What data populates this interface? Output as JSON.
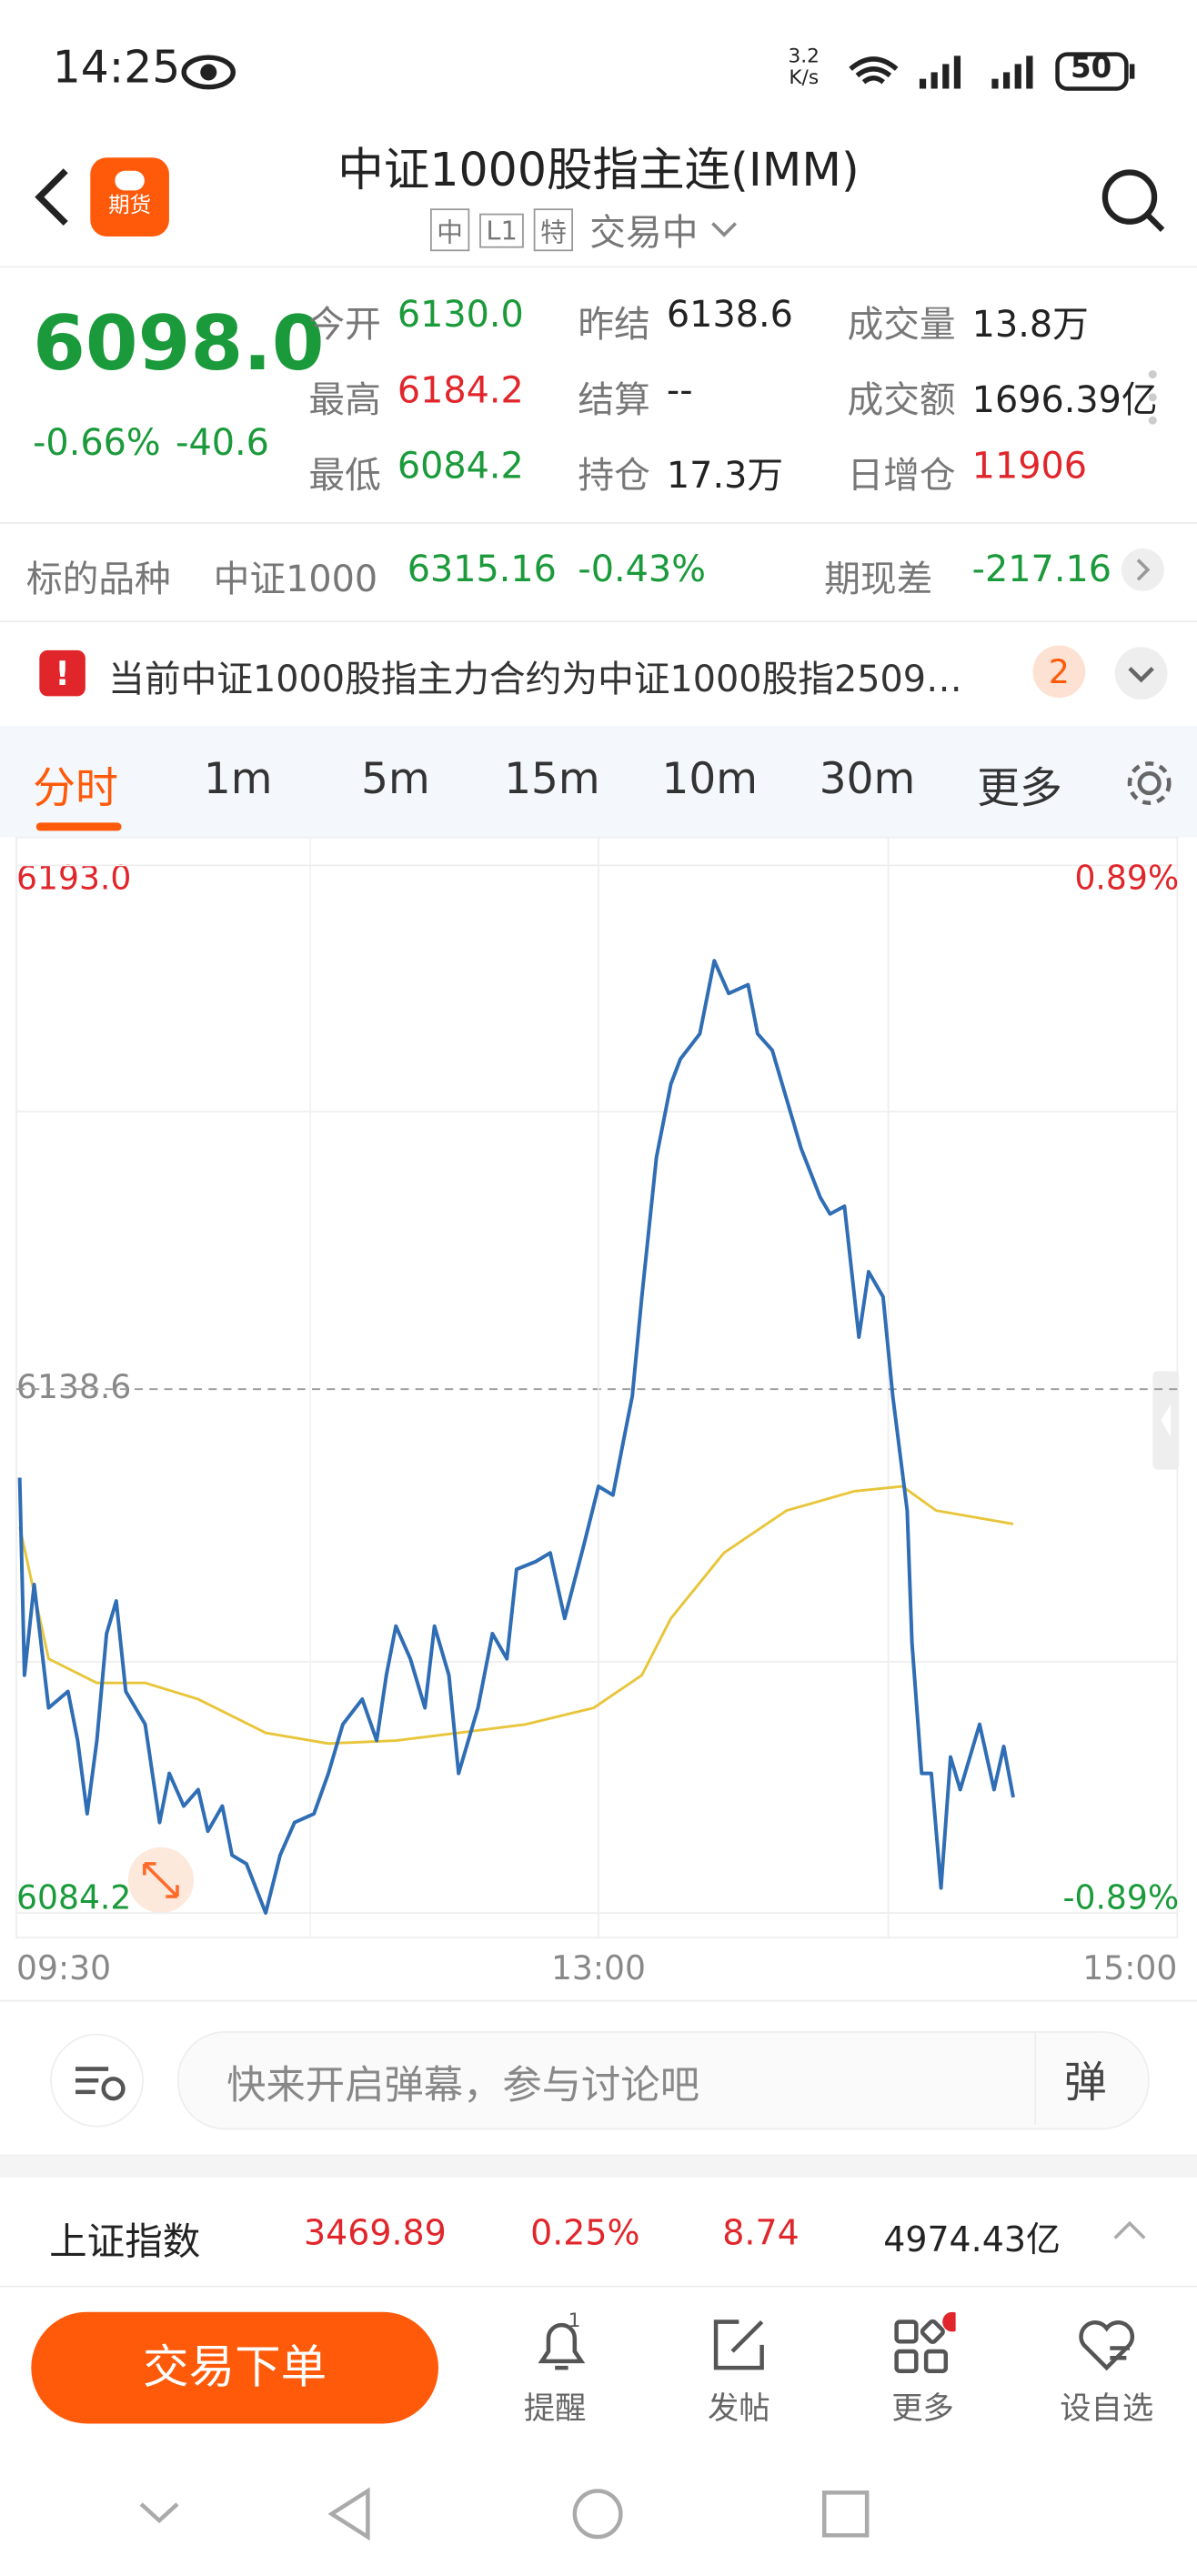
{
  "status_bar": {
    "time": "14:25",
    "speed": "3.2",
    "speed_unit": "K/s",
    "battery": "50"
  },
  "header": {
    "badge": "期货",
    "title": "中证1000股指主连(IMM)",
    "tags": [
      "中",
      "L1",
      "特"
    ],
    "status": "交易中"
  },
  "quote": {
    "price": "6098.0",
    "change_pct": "-0.66%",
    "change": "-40.6",
    "fields": [
      {
        "label": "今开",
        "value": "6130.0"
      },
      {
        "label": "昨结",
        "value": "6138.6"
      },
      {
        "label": "成交量",
        "value": "13.8万"
      },
      {
        "label": "最高",
        "value": "6184.2"
      },
      {
        "label": "结算",
        "value": "--"
      },
      {
        "label": "成交额",
        "value": "1696.39亿"
      },
      {
        "label": "最低",
        "value": "6084.2"
      },
      {
        "label": "持仓",
        "value": "17.3万"
      },
      {
        "label": "日增仓",
        "value": "11906"
      }
    ]
  },
  "underlying": {
    "label": "标的品种",
    "name": "中证1000",
    "price": "6315.16",
    "change": "-0.43%",
    "basis_label": "期现差",
    "basis": "-217.16"
  },
  "notice": {
    "text": "当前中证1000股指主力合约为中证1000股指2509…",
    "count": "2"
  },
  "tabs": [
    "分时",
    "1m",
    "5m",
    "15m",
    "10m",
    "30m",
    "更多"
  ],
  "chart_data": {
    "type": "line",
    "xlim": [
      0,
      240
    ],
    "xticks": [
      {
        "value": 0,
        "label": "09:30"
      },
      {
        "value": 120,
        "label": "13:00"
      },
      {
        "value": 240,
        "label": "15:00"
      }
    ],
    "ylim": [
      6084.2,
      6193.0
    ],
    "yticks": [
      6084.2,
      6138.6,
      {
        "value": 6193.0,
        "label": "6193.0"
      }
    ],
    "y2lim": [
      -0.89,
      0.89
    ],
    "y2ticks": [
      {
        "value": -0.89,
        "label": "-0.89%"
      },
      {
        "value": 0.89,
        "label": "0.89%"
      }
    ],
    "series": [
      {
        "color": "#2f6db5",
        "x": [
          0,
          1,
          3,
          6,
          10,
          12,
          14,
          16,
          18,
          20,
          22,
          26,
          29,
          31,
          34,
          37,
          39,
          42,
          44,
          47,
          51,
          54,
          57,
          61,
          64,
          67,
          71,
          74,
          76,
          78,
          81,
          84,
          86,
          89,
          91,
          95,
          98,
          101,
          103,
          107,
          110,
          113,
          117,
          120,
          123,
          125,
          127,
          129,
          132,
          135,
          137,
          141,
          144,
          147,
          151,
          153,
          156,
          159,
          162,
          166,
          168,
          171,
          174,
          176,
          179,
          181,
          184,
          185,
          187,
          189,
          191,
          193,
          195,
          197,
          199,
          202,
          204,
          206
        ],
        "values": [
          6129.4,
          6108.9,
          6118.3,
          6105.5,
          6107.2,
          6102.1,
          6094.5,
          6102.1,
          6113.2,
          6116.6,
          6107.2,
          6103.8,
          6093.6,
          6098.7,
          6095.3,
          6097.0,
          6092.7,
          6095.3,
          6090.2,
          6089.3,
          6084.2,
          6090.2,
          6093.6,
          6094.5,
          6098.7,
          6103.8,
          6106.4,
          6102.1,
          6108.9,
          6114.0,
          6110.6,
          6105.5,
          6114.0,
          6108.9,
          6098.7,
          6105.5,
          6113.2,
          6110.6,
          6119.9,
          6120.7,
          6121.6,
          6114.8,
          6122.5,
          6128.5,
          6127.6,
          6132.8,
          6137.9,
          6148.2,
          6162.7,
          6170.3,
          6172.9,
          6175.5,
          6183.1,
          6179.7,
          6180.6,
          6175.5,
          6173.8,
          6168.7,
          6163.6,
          6158.5,
          6156.8,
          6157.6,
          6144.0,
          6150.8,
          6148.2,
          6137.9,
          6126.0,
          6112.3,
          6098.7,
          6098.7,
          6086.8,
          6100.4,
          6097.0,
          6100.4,
          6103.8,
          6097.0,
          6101.5,
          6096.2
        ]
      },
      {
        "color": "#e8c53a",
        "x": [
          0,
          6,
          16,
          26,
          37,
          51,
          64,
          78,
          91,
          105,
          119,
          129,
          135,
          146,
          159,
          173,
          183,
          190,
          206
        ],
        "values": [
          6124.3,
          6110.6,
          6108.1,
          6108.1,
          6106.4,
          6102.9,
          6101.8,
          6102.1,
          6102.9,
          6103.8,
          6105.5,
          6108.9,
          6114.8,
          6121.6,
          6126.0,
          6128.0,
          6128.5,
          6126.0,
          6124.6
        ]
      }
    ]
  },
  "comment": {
    "placeholder": "快来开启弹幕，参与讨论吧",
    "button": "弹"
  },
  "ticker": {
    "name": "上证指数",
    "price": "3469.89",
    "change_pct": "0.25%",
    "change": "8.74",
    "amount": "4974.43亿"
  },
  "bottom": {
    "trade": "交易下单",
    "actions": [
      "提醒",
      "发帖",
      "更多",
      "设自选"
    ],
    "alert_count": "1"
  }
}
